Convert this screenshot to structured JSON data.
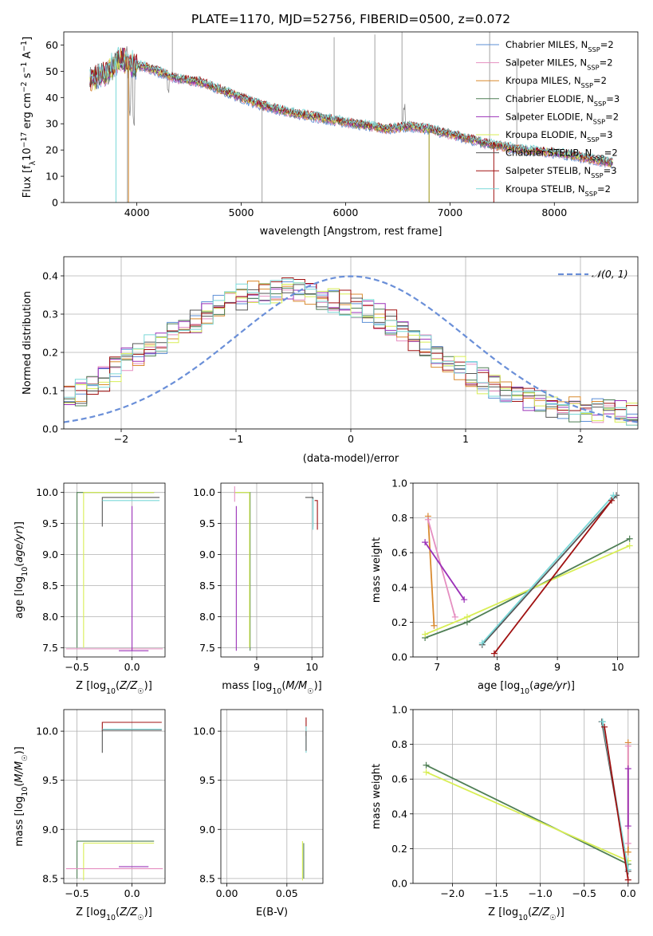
{
  "title": "PLATE=1170, MJD=52756, FIBERID=0500, z=0.072",
  "colors": {
    "Chabrier MILES": "#5b8fd6",
    "Salpeter MILES": "#e58fc1",
    "Kroupa MILES": "#d98a2f",
    "Chabrier ELODIE": "#4f7f55",
    "Salpeter ELODIE": "#9b30b8",
    "Kroupa ELODIE": "#d8ee55",
    "Chabrier STELIB": "#555555",
    "Salpeter STELIB": "#a01010",
    "Kroupa STELIB": "#7ad8d8",
    "data": "#8a8a8a",
    "normal": "#6a8fd8"
  },
  "chart_data": [
    {
      "id": "spectrum",
      "type": "line",
      "xlabel": "wavelength [Angstrom, rest frame]",
      "ylabel": "Flux [f_λ 10^-17 erg cm^-2 s^-1 A^-1]",
      "xlim": [
        3300,
        8800
      ],
      "ylim": [
        0,
        65
      ],
      "xticks": [
        4000,
        5000,
        6000,
        7000,
        8000
      ],
      "yticks": [
        0,
        10,
        20,
        30,
        40,
        50,
        60
      ],
      "legend_position": "top-right",
      "legend": [
        {
          "name": "Chabrier MILES",
          "label": "Chabrier MILES, N",
          "nssp": "2"
        },
        {
          "name": "Salpeter MILES",
          "label": "Salpeter MILES, N",
          "nssp": "2"
        },
        {
          "name": "Kroupa MILES",
          "label": "Kroupa MILES, N",
          "nssp": "2"
        },
        {
          "name": "Chabrier ELODIE",
          "label": "Chabrier ELODIE, N",
          "nssp": "3"
        },
        {
          "name": "Salpeter ELODIE",
          "label": "Salpeter ELODIE, N",
          "nssp": "2"
        },
        {
          "name": "Kroupa ELODIE",
          "label": "Kroupa ELODIE, N",
          "nssp": "3"
        },
        {
          "name": "Chabrier STELIB",
          "label": "Chabrier STELIB, N",
          "nssp": "2"
        },
        {
          "name": "Salpeter STELIB",
          "label": "Salpeter STELIB, N",
          "nssp": "3"
        },
        {
          "name": "Kroupa STELIB",
          "label": "Kroupa STELIB, N",
          "nssp": "2"
        }
      ],
      "legend_subscript": "SSP",
      "continuum": [
        [
          3550,
          46
        ],
        [
          3700,
          49
        ],
        [
          3850,
          55
        ],
        [
          3950,
          52
        ],
        [
          4050,
          52
        ],
        [
          4200,
          50
        ],
        [
          4400,
          47
        ],
        [
          4600,
          46
        ],
        [
          4800,
          43
        ],
        [
          5000,
          40
        ],
        [
          5200,
          37
        ],
        [
          5500,
          34
        ],
        [
          5800,
          32
        ],
        [
          6100,
          30
        ],
        [
          6400,
          28
        ],
        [
          6600,
          29
        ],
        [
          6800,
          28
        ],
        [
          7000,
          26
        ],
        [
          7200,
          24
        ],
        [
          7400,
          22
        ],
        [
          7700,
          20
        ],
        [
          8000,
          19
        ],
        [
          8300,
          17
        ],
        [
          8550,
          15
        ]
      ]
    },
    {
      "id": "residuals",
      "type": "line",
      "xlabel": "(data-model)/error",
      "ylabel": "Normed distribution",
      "xlim": [
        -2.5,
        2.5
      ],
      "ylim": [
        0,
        0.45
      ],
      "xticks": [
        -2,
        -1,
        0,
        1,
        2
      ],
      "yticks": [
        0.0,
        0.1,
        0.2,
        0.3,
        0.4
      ],
      "legend": "𝒩(0, 1)",
      "legend_position": "top-right",
      "histogram_envelope": [
        [
          -2.5,
          0.07
        ],
        [
          -2.2,
          0.12
        ],
        [
          -2.0,
          0.17
        ],
        [
          -1.7,
          0.22
        ],
        [
          -1.4,
          0.27
        ],
        [
          -1.1,
          0.33
        ],
        [
          -0.8,
          0.36
        ],
        [
          -0.5,
          0.36
        ],
        [
          -0.2,
          0.34
        ],
        [
          0.1,
          0.32
        ],
        [
          0.4,
          0.27
        ],
        [
          0.7,
          0.2
        ],
        [
          1.0,
          0.15
        ],
        [
          1.3,
          0.1
        ],
        [
          1.6,
          0.07
        ],
        [
          2.0,
          0.05
        ],
        [
          2.5,
          0.04
        ]
      ]
    },
    {
      "id": "age_vs_Z",
      "type": "scatter",
      "xlabel": "Z [log10(Z/Z☉)]",
      "ylabel": "age [log10(age/yr)]",
      "xlim": [
        -0.62,
        0.3
      ],
      "ylim": [
        7.35,
        10.15
      ],
      "xticks": [
        -0.5,
        0.0
      ],
      "yticks": [
        7.5,
        8.0,
        8.5,
        9.0,
        9.5,
        10.0
      ],
      "tick_labels_x": [
        "−0.5",
        "0.0"
      ],
      "segments": [
        {
          "series": "Chabrier ELODIE",
          "x": [
            -0.5,
            -0.5,
            0.2
          ],
          "y": [
            7.5,
            10.0,
            10.0
          ]
        },
        {
          "series": "Kroupa ELODIE",
          "x": [
            -0.44,
            -0.44,
            0.2
          ],
          "y": [
            7.5,
            10.0,
            10.0
          ]
        },
        {
          "series": "Chabrier STELIB",
          "x": [
            -0.27,
            -0.27,
            0.25
          ],
          "y": [
            9.45,
            9.92,
            9.92
          ]
        },
        {
          "series": "Kroupa STELIB",
          "x": [
            -0.27,
            0.25
          ],
          "y": [
            9.87,
            9.87
          ]
        },
        {
          "series": "Salpeter MILES",
          "x": [
            -0.6,
            0.28
          ],
          "y": [
            7.48,
            7.48
          ]
        },
        {
          "series": "Salpeter ELODIE",
          "x": [
            0.0,
            0.0
          ],
          "y": [
            7.45,
            9.78
          ]
        },
        {
          "series": "Salpeter ELODIE",
          "x": [
            -0.12,
            0.15
          ],
          "y": [
            7.45,
            7.45
          ]
        }
      ]
    },
    {
      "id": "age_vs_mass",
      "type": "scatter",
      "xlabel": "mass [log10(M/M☉)]",
      "ylabel": "",
      "xlim": [
        8.35,
        10.2
      ],
      "ylim": [
        7.35,
        10.15
      ],
      "xticks": [
        9,
        10
      ],
      "yticks": [
        7.5,
        8.0,
        8.5,
        9.0,
        9.5,
        10.0
      ],
      "segments": [
        {
          "series": "Chabrier ELODIE",
          "x": [
            8.6,
            8.88,
            8.88
          ],
          "y": [
            10.0,
            10.0,
            7.45
          ]
        },
        {
          "series": "Kroupa ELODIE",
          "x": [
            8.6,
            8.87,
            8.87
          ],
          "y": [
            10.0,
            10.0,
            7.5
          ]
        },
        {
          "series": "Salpeter ELODIE",
          "x": [
            8.63,
            8.63
          ],
          "y": [
            7.45,
            9.78
          ]
        },
        {
          "series": "Salpeter MILES",
          "x": [
            8.6,
            8.6
          ],
          "y": [
            9.85,
            10.1
          ]
        },
        {
          "series": "Chabrier STELIB",
          "x": [
            9.88,
            10.02,
            10.02
          ],
          "y": [
            9.92,
            9.92,
            9.45
          ]
        },
        {
          "series": "Kroupa STELIB",
          "x": [
            10.02,
            10.02
          ],
          "y": [
            9.4,
            9.9
          ]
        },
        {
          "series": "Salpeter STELIB",
          "x": [
            10.05,
            10.1,
            10.1
          ],
          "y": [
            9.87,
            9.87,
            9.4
          ]
        }
      ]
    },
    {
      "id": "weight_vs_age",
      "type": "line",
      "xlabel": "age [log10(age/yr)]",
      "ylabel": "mass weight",
      "xlim": [
        6.6,
        10.35
      ],
      "ylim": [
        0,
        1
      ],
      "xticks": [
        7,
        8,
        9,
        10
      ],
      "yticks": [
        0.0,
        0.2,
        0.4,
        0.6,
        0.8,
        1.0
      ],
      "lines": [
        {
          "series": "Kroupa MILES",
          "x": [
            6.85,
            6.95
          ],
          "y": [
            0.81,
            0.18
          ]
        },
        {
          "series": "Salpeter MILES",
          "x": [
            6.85,
            7.3
          ],
          "y": [
            0.79,
            0.23
          ]
        },
        {
          "series": "Salpeter ELODIE",
          "x": [
            6.8,
            7.45
          ],
          "y": [
            0.66,
            0.33
          ]
        },
        {
          "series": "Chabrier ELODIE",
          "x": [
            6.8,
            7.5,
            10.2
          ],
          "y": [
            0.11,
            0.2,
            0.68
          ]
        },
        {
          "series": "Kroupa ELODIE",
          "x": [
            6.8,
            7.5,
            10.2
          ],
          "y": [
            0.13,
            0.23,
            0.64
          ]
        },
        {
          "series": "Chabrier STELIB",
          "x": [
            7.75,
            9.98
          ],
          "y": [
            0.07,
            0.93
          ]
        },
        {
          "series": "Kroupa STELIB",
          "x": [
            7.75,
            9.93
          ],
          "y": [
            0.08,
            0.93
          ]
        },
        {
          "series": "Salpeter STELIB",
          "x": [
            7.95,
            9.9
          ],
          "y": [
            0.02,
            0.9
          ]
        }
      ]
    },
    {
      "id": "mass_vs_Z",
      "type": "scatter",
      "xlabel": "Z [log10(Z/Z☉)]",
      "ylabel": "mass [log10(M/M☉)]",
      "xlim": [
        -0.62,
        0.3
      ],
      "ylim": [
        8.45,
        10.22
      ],
      "xticks": [
        -0.5,
        0.0
      ],
      "yticks": [
        8.5,
        9.0,
        9.5,
        10.0
      ],
      "tick_labels_x": [
        "−0.5",
        "0.0"
      ],
      "segments": [
        {
          "series": "Salpeter STELIB",
          "x": [
            -0.27,
            -0.27,
            0.27
          ],
          "y": [
            10.0,
            10.09,
            10.09
          ]
        },
        {
          "series": "Chabrier STELIB",
          "x": [
            -0.27,
            -0.27,
            0.27
          ],
          "y": [
            9.78,
            10.01,
            10.01
          ]
        },
        {
          "series": "Kroupa STELIB",
          "x": [
            -0.27,
            0.27
          ],
          "y": [
            10.02,
            10.02
          ]
        },
        {
          "series": "Chabrier ELODIE",
          "x": [
            -0.5,
            -0.5,
            0.2
          ],
          "y": [
            8.5,
            8.88,
            8.88
          ]
        },
        {
          "series": "Kroupa ELODIE",
          "x": [
            -0.44,
            -0.44,
            0.2
          ],
          "y": [
            8.48,
            8.86,
            8.86
          ]
        },
        {
          "series": "Salpeter MILES",
          "x": [
            -0.6,
            0.28
          ],
          "y": [
            8.6,
            8.6
          ]
        },
        {
          "series": "Salpeter ELODIE",
          "x": [
            -0.12,
            0.15
          ],
          "y": [
            8.62,
            8.62
          ]
        }
      ]
    },
    {
      "id": "mass_vs_EBV",
      "type": "scatter",
      "xlabel": "E(B-V)",
      "ylabel": "",
      "xlim": [
        -0.005,
        0.08
      ],
      "ylim": [
        8.45,
        10.22
      ],
      "xticks": [
        0.0,
        0.05
      ],
      "yticks": [
        8.5,
        9.0,
        9.5,
        10.0
      ],
      "tick_labels_x": [
        "0.00",
        "0.05"
      ],
      "segments": [
        {
          "series": "Salpeter STELIB",
          "x": [
            0.066,
            0.066
          ],
          "y": [
            9.95,
            10.14
          ]
        },
        {
          "series": "Kroupa STELIB",
          "x": [
            0.066,
            0.066
          ],
          "y": [
            9.78,
            10.05
          ]
        },
        {
          "series": "Chabrier STELIB",
          "x": [
            0.066,
            0.066
          ],
          "y": [
            9.8,
            10.0
          ]
        },
        {
          "series": "Kroupa ELODIE",
          "x": [
            0.063,
            0.063
          ],
          "y": [
            8.48,
            8.88
          ]
        },
        {
          "series": "Chabrier ELODIE",
          "x": [
            0.064,
            0.064
          ],
          "y": [
            8.5,
            8.86
          ]
        }
      ]
    },
    {
      "id": "weight_vs_Z",
      "type": "line",
      "xlabel": "Z [log10(Z/Z☉)]",
      "ylabel": "mass weight",
      "xlim": [
        -2.45,
        0.12
      ],
      "ylim": [
        0,
        1
      ],
      "xticks": [
        -2.0,
        -1.5,
        -1.0,
        -0.5,
        0.0
      ],
      "yticks": [
        0.0,
        0.2,
        0.4,
        0.6,
        0.8,
        1.0
      ],
      "tick_labels_x": [
        "−2.0",
        "−1.5",
        "−1.0",
        "−0.5",
        "0.0"
      ],
      "lines": [
        {
          "series": "Chabrier ELODIE",
          "x": [
            -2.3,
            0.0
          ],
          "y": [
            0.68,
            0.11
          ]
        },
        {
          "series": "Kroupa ELODIE",
          "x": [
            -2.3,
            0.0
          ],
          "y": [
            0.64,
            0.13
          ]
        },
        {
          "series": "Chabrier STELIB",
          "x": [
            -0.3,
            0.0
          ],
          "y": [
            0.93,
            0.07
          ]
        },
        {
          "series": "Kroupa STELIB",
          "x": [
            -0.29,
            0.0
          ],
          "y": [
            0.93,
            0.08
          ]
        },
        {
          "series": "Salpeter STELIB",
          "x": [
            -0.27,
            0.0
          ],
          "y": [
            0.9,
            0.02
          ]
        },
        {
          "series": "Kroupa MILES",
          "x": [
            0.0,
            0.0
          ],
          "y": [
            0.81,
            0.18
          ]
        },
        {
          "series": "Salpeter MILES",
          "x": [
            0.0,
            0.0
          ],
          "y": [
            0.79,
            0.23
          ]
        },
        {
          "series": "Salpeter ELODIE",
          "x": [
            0.0,
            0.0
          ],
          "y": [
            0.66,
            0.33
          ]
        }
      ]
    }
  ]
}
